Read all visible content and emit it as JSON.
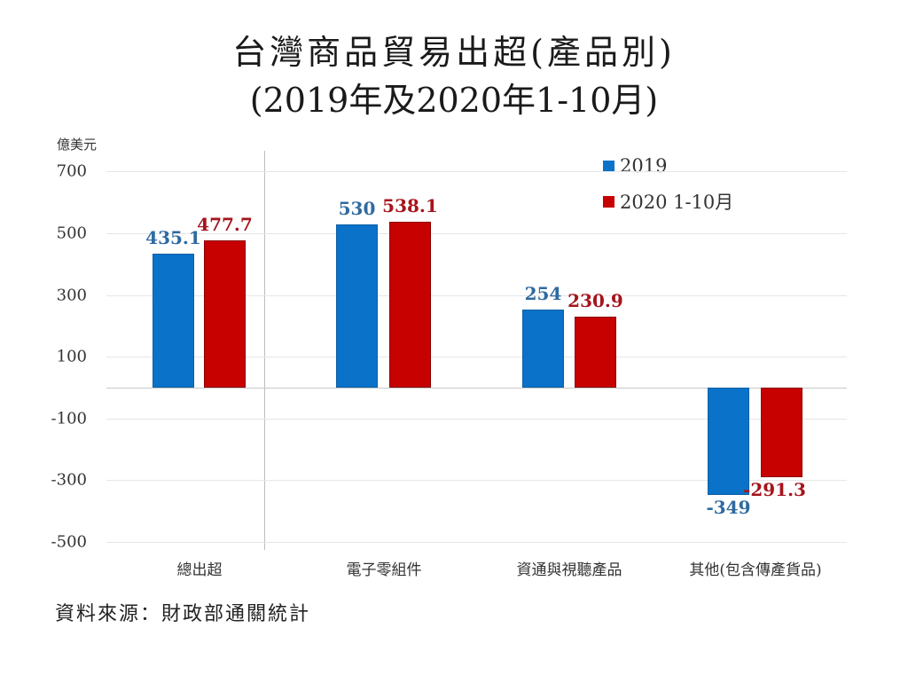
{
  "title": {
    "line1": "台灣商品貿易出超(產品別)",
    "line2": "(2019年及2020年1-10月)"
  },
  "unit_label": "億美元",
  "source": "資料來源：財政部通關統計",
  "legend": [
    {
      "label": "2019",
      "color": "#0a72c8"
    },
    {
      "label": "2020 1-10月",
      "color": "#c70000"
    }
  ],
  "y_ticks": [
    "700",
    "500",
    "300",
    "100",
    "-100",
    "-300",
    "-500"
  ],
  "categories": [
    "總出超",
    "電子零組件",
    "資通與視聽產品",
    "其他(包含傳產貨品)"
  ],
  "value_labels": {
    "s2019": [
      "435.1",
      "530",
      "254",
      "-349"
    ],
    "s2020": [
      "477.7",
      "538.1",
      "230.9",
      "-291.3"
    ]
  },
  "chart_data": {
    "type": "bar",
    "title": "台灣商品貿易出超(產品別) (2019年及2020年1-10月)",
    "xlabel": "",
    "ylabel": "億美元",
    "categories": [
      "總出超",
      "電子零組件",
      "資通與視聽產品",
      "其他(包含傳產貨品)"
    ],
    "series": [
      {
        "name": "2019",
        "color": "#0a72c8",
        "values": [
          435.1,
          530,
          254,
          -349
        ]
      },
      {
        "name": "2020 1-10月",
        "color": "#c70000",
        "values": [
          477.7,
          538.1,
          230.9,
          -291.3
        ]
      }
    ],
    "ylim": [
      -550,
      750
    ],
    "y_ticks": [
      700,
      500,
      300,
      100,
      -100,
      -300,
      -500
    ],
    "grid": true,
    "legend_position": "top-right",
    "annotations": [
      "資料來源：財政部通關統計"
    ]
  }
}
